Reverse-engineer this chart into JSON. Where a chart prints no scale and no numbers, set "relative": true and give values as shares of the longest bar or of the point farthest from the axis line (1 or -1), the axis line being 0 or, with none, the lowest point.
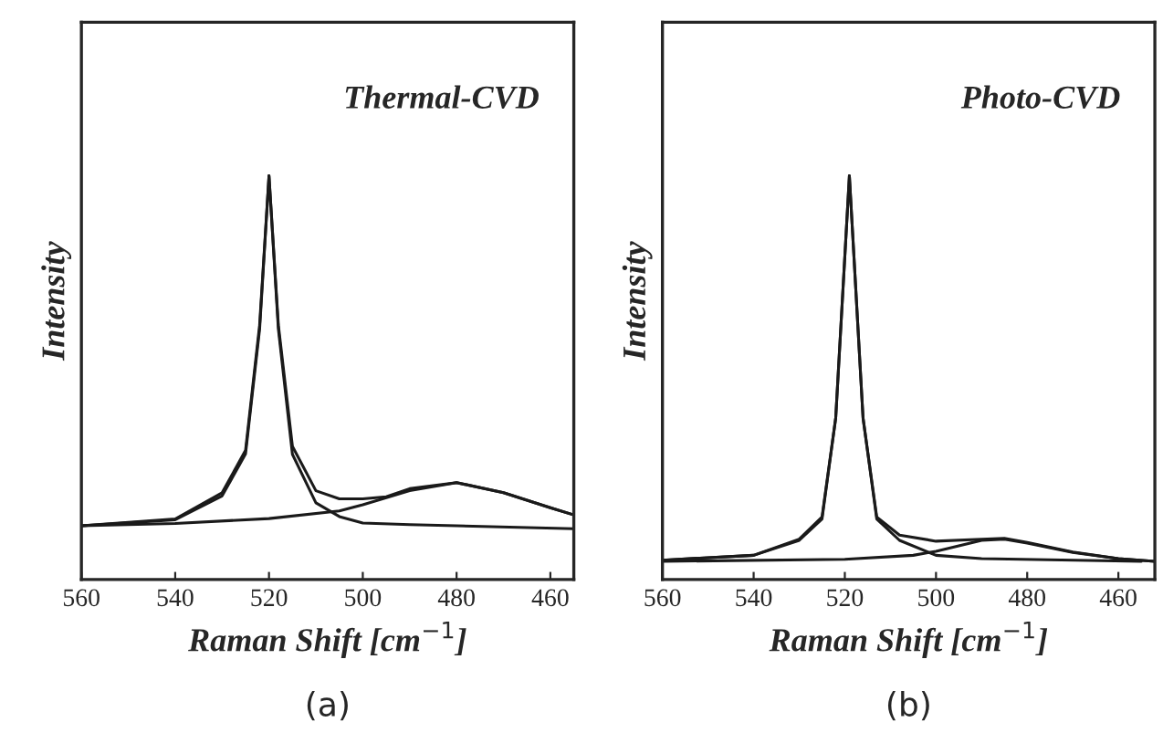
{
  "chart_data": [
    {
      "type": "line",
      "relative": true,
      "xlabel": "Raman Shift [cm$^{−1}$]",
      "ylabel": "Intensity",
      "xlim": [
        560,
        455
      ],
      "xticks": [
        560,
        540,
        520,
        500,
        480,
        460
      ],
      "annotations": [
        "Thermal-CVD",
        "(a)"
      ],
      "series": [
        {
          "color": "#1a1a1a",
          "x": [
            560,
            540,
            530,
            525,
            522,
            520,
            518,
            515,
            510,
            505,
            500,
            495,
            490,
            480,
            470,
            460,
            455
          ],
          "values": [
            0.133,
            0.15,
            0.215,
            0.32,
            0.63,
            1.0,
            0.63,
            0.33,
            0.22,
            0.2,
            0.2,
            0.205,
            0.225,
            0.24,
            0.215,
            0.178,
            0.16
          ]
        },
        {
          "color": "#1a1a1a",
          "x": [
            560,
            540,
            530,
            525,
            522,
            520,
            518,
            515,
            510,
            505,
            500,
            490,
            480,
            455
          ],
          "values": [
            0.133,
            0.148,
            0.207,
            0.311,
            0.62,
            1.0,
            0.62,
            0.31,
            0.19,
            0.156,
            0.14,
            0.136,
            0.133,
            0.126
          ]
        },
        {
          "color": "#1a1a1a",
          "x": [
            560,
            540,
            520,
            505,
            500,
            490,
            480,
            470,
            460,
            455
          ],
          "values": [
            0.133,
            0.139,
            0.151,
            0.17,
            0.185,
            0.22,
            0.24,
            0.215,
            0.178,
            0.16
          ]
        }
      ]
    },
    {
      "type": "line",
      "relative": true,
      "xlabel": "Raman Shift [cm$^{−1}$]",
      "ylabel": "Intensity",
      "xlim": [
        560,
        452
      ],
      "xticks": [
        560,
        540,
        520,
        500,
        480,
        460
      ],
      "annotations": [
        "Photo-CVD",
        "(b)"
      ],
      "series": [
        {
          "color": "#1a1a1a",
          "x": [
            560,
            540,
            530,
            525,
            522,
            519,
            516,
            513,
            508,
            500,
            490,
            485,
            480,
            470,
            460,
            452
          ],
          "values": [
            0.048,
            0.06,
            0.1,
            0.155,
            0.4,
            1.0,
            0.4,
            0.155,
            0.11,
            0.095,
            0.1,
            0.102,
            0.092,
            0.068,
            0.052,
            0.045
          ]
        },
        {
          "color": "#1a1a1a",
          "x": [
            560,
            540,
            530,
            525,
            522,
            519,
            516,
            513,
            508,
            500,
            490,
            455
          ],
          "values": [
            0.048,
            0.06,
            0.097,
            0.15,
            0.4,
            1.0,
            0.4,
            0.15,
            0.097,
            0.06,
            0.052,
            0.045
          ]
        },
        {
          "color": "#1a1a1a",
          "x": [
            560,
            520,
            505,
            500,
            490,
            485,
            480,
            470,
            460,
            452
          ],
          "values": [
            0.045,
            0.05,
            0.06,
            0.07,
            0.097,
            0.1,
            0.09,
            0.067,
            0.052,
            0.045
          ]
        }
      ]
    }
  ]
}
